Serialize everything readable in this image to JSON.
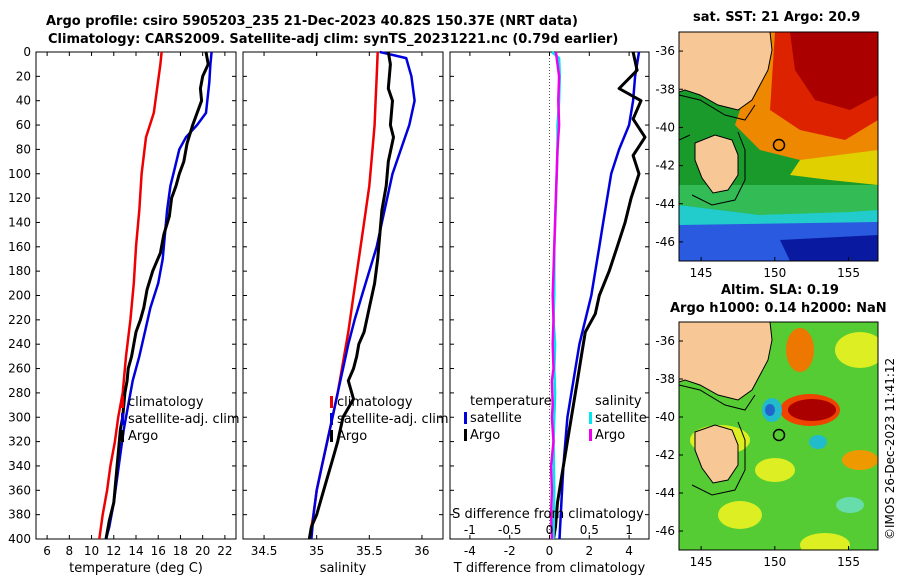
{
  "header": {
    "title_line1": "Argo profile: csiro 5905203_235 21-Dec-2023 40.82S 150.37E (NRT data)",
    "title_line2": "Climatology: CARS2009. Satellite-adj clim: synTS_20231221.nc (0.79d earlier)"
  },
  "colors": {
    "climatology": "#ee0000",
    "satellite": "#0000dd",
    "argo": "#000000",
    "salinity_satellite": "#00e5ee",
    "salinity_argo": "#ee00ee",
    "land": "#f7c896"
  },
  "chart_data": [
    {
      "type": "line",
      "name": "temperature-profile",
      "xlabel": "temperature (deg C)",
      "ylabel": "",
      "xlim": [
        5,
        23
      ],
      "ylim": [
        400,
        0
      ],
      "xticks": [
        6,
        8,
        10,
        12,
        14,
        16,
        18,
        20,
        22
      ],
      "yticks": [
        0,
        20,
        40,
        60,
        80,
        100,
        120,
        140,
        160,
        180,
        200,
        220,
        240,
        260,
        280,
        300,
        320,
        340,
        360,
        380,
        400
      ],
      "legend": [
        "climatology",
        "satellite-adj. clim",
        "Argo"
      ],
      "series": [
        {
          "name": "climatology",
          "color": "#ee0000",
          "width": 2.5,
          "x": [
            16.3,
            16.2,
            15.9,
            15.6,
            14.9,
            14.5,
            14.3,
            14.0,
            13.8,
            13.5,
            13.1,
            12.8,
            12.4,
            12.1,
            11.7,
            11.4,
            11.0,
            10.7
          ],
          "y": [
            0,
            10,
            30,
            50,
            70,
            100,
            130,
            160,
            190,
            220,
            250,
            280,
            300,
            320,
            340,
            360,
            380,
            400
          ]
        },
        {
          "name": "satellite-adj. clim",
          "color": "#0000dd",
          "width": 2.5,
          "x": [
            20.8,
            20.7,
            20.6,
            20.3,
            19.5,
            18.5,
            17.9,
            17.5,
            17.1,
            16.8,
            16.6,
            16.4,
            16.0,
            15.3,
            14.8,
            14.3,
            13.7,
            13.3,
            12.9,
            12.6,
            12.3,
            12.0,
            11.6,
            11.3
          ],
          "y": [
            0,
            10,
            25,
            50,
            60,
            70,
            80,
            95,
            110,
            130,
            150,
            170,
            190,
            210,
            230,
            250,
            270,
            290,
            310,
            330,
            350,
            370,
            390,
            400
          ]
        },
        {
          "name": "Argo",
          "color": "#000000",
          "width": 3,
          "x": [
            20.3,
            20.5,
            20.0,
            19.8,
            19.9,
            19.1,
            18.6,
            18.3,
            17.9,
            17.6,
            17.2,
            17.0,
            16.5,
            16.2,
            15.5,
            15.0,
            14.7,
            14.4,
            14.0,
            13.8,
            13.6,
            13.3,
            13.2,
            13.0,
            12.9,
            12.8,
            12.6,
            12.5,
            12.3,
            12.1,
            12.0,
            11.6,
            11.3
          ],
          "y": [
            0,
            10,
            20,
            30,
            40,
            60,
            75,
            90,
            100,
            110,
            120,
            135,
            150,
            165,
            180,
            195,
            210,
            220,
            230,
            240,
            250,
            260,
            270,
            280,
            290,
            300,
            310,
            320,
            340,
            360,
            370,
            385,
            400
          ]
        }
      ]
    },
    {
      "type": "line",
      "name": "salinity-profile",
      "xlabel": "salinity",
      "xlim": [
        34.3,
        36.2
      ],
      "ylim": [
        400,
        0
      ],
      "xticks": [
        34.5,
        35,
        35.5,
        36
      ],
      "xtick_labels": [
        "34.5",
        "35",
        "35.5",
        "36"
      ],
      "legend": [
        "climatology",
        "satellite-adj. clim",
        "Argo"
      ],
      "series": [
        {
          "name": "climatology",
          "color": "#ee0000",
          "width": 2.5,
          "x": [
            35.58,
            35.57,
            35.56,
            35.55,
            35.53,
            35.5,
            35.45,
            35.4,
            35.35,
            35.3,
            35.25,
            35.2,
            35.15,
            35.1,
            35.05,
            35.0,
            34.97,
            34.93
          ],
          "y": [
            0,
            20,
            40,
            60,
            80,
            110,
            140,
            170,
            200,
            230,
            255,
            280,
            300,
            320,
            340,
            360,
            380,
            400
          ]
        },
        {
          "name": "satellite-adj. clim",
          "color": "#0000dd",
          "width": 2.5,
          "x": [
            35.6,
            35.85,
            35.9,
            35.93,
            35.88,
            35.8,
            35.72,
            35.67,
            35.62,
            35.57,
            35.5,
            35.43,
            35.36,
            35.3,
            35.25,
            35.2,
            35.15,
            35.1,
            35.05,
            35.0,
            34.97,
            34.95
          ],
          "y": [
            0,
            5,
            20,
            40,
            60,
            80,
            100,
            120,
            140,
            160,
            180,
            200,
            220,
            240,
            260,
            280,
            300,
            320,
            340,
            360,
            380,
            400
          ]
        },
        {
          "name": "Argo",
          "color": "#000000",
          "width": 3,
          "x": [
            35.68,
            35.7,
            35.68,
            35.72,
            35.7,
            35.73,
            35.68,
            35.66,
            35.62,
            35.6,
            35.58,
            35.55,
            35.5,
            35.45,
            35.4,
            35.38,
            35.35,
            35.3,
            35.35,
            35.25,
            35.2,
            35.15,
            35.1,
            35.05,
            35.0,
            34.95,
            34.93
          ],
          "y": [
            0,
            10,
            30,
            40,
            60,
            70,
            90,
            110,
            130,
            150,
            170,
            190,
            210,
            230,
            240,
            250,
            260,
            270,
            285,
            300,
            320,
            335,
            350,
            365,
            380,
            390,
            400
          ]
        }
      ]
    },
    {
      "type": "line",
      "name": "difference-profile",
      "xlabel": "T difference from climatology",
      "top_xlabel": "S difference from climatology",
      "xlim": [
        -5,
        5
      ],
      "ylim": [
        400,
        0
      ],
      "xticks": [
        -4,
        -2,
        0,
        2,
        4
      ],
      "xtick_labels": [
        "-4",
        "-2",
        "0",
        "2",
        "4"
      ],
      "top_xticks": [
        -1,
        -0.5,
        0,
        0.5,
        1
      ],
      "top_xtick_labels": [
        "-1",
        "-0.5",
        "0",
        "0.5",
        "1"
      ],
      "legend_temperature_title": "temperature",
      "legend_salinity_title": "salinity",
      "legend_temperature": [
        "satellite",
        "Argo"
      ],
      "legend_salinity": [
        "satellite",
        "Argo"
      ],
      "series": [
        {
          "name": "T satellite",
          "color": "#0000dd",
          "width": 2.5,
          "x": [
            4.5,
            4.3,
            4.2,
            4.0,
            3.5,
            3.1,
            2.9,
            2.7,
            2.5,
            2.3,
            2.1,
            1.8,
            1.5,
            1.3,
            1.1,
            0.9,
            0.8,
            0.7,
            0.6,
            0.5
          ],
          "y": [
            0,
            20,
            40,
            60,
            80,
            100,
            120,
            140,
            160,
            180,
            200,
            220,
            240,
            260,
            280,
            300,
            320,
            340,
            370,
            400
          ]
        },
        {
          "name": "T Argo",
          "color": "#000000",
          "width": 3,
          "x": [
            4.2,
            4.4,
            3.5,
            4.6,
            4.2,
            4.8,
            4.2,
            4.5,
            4.1,
            3.8,
            3.4,
            3.0,
            2.5,
            2.3,
            1.8,
            1.6,
            1.4,
            1.2,
            1.0,
            0.8,
            0.6,
            0.4,
            0.3,
            0.2
          ],
          "y": [
            0,
            15,
            30,
            40,
            55,
            70,
            85,
            100,
            120,
            140,
            160,
            180,
            200,
            215,
            230,
            250,
            270,
            290,
            310,
            330,
            350,
            370,
            390,
            400
          ]
        },
        {
          "name": "S satellite",
          "color": "#00e5ee",
          "width": 2.5,
          "x": [
            0.03,
            0.12,
            0.13,
            0.12,
            0.1,
            0.1,
            0.09,
            0.08,
            0.07,
            0.06,
            0.06,
            0.06,
            0.05,
            0.07,
            0.06,
            0.07,
            0.06,
            0.05,
            0.06,
            0.05
          ],
          "y": [
            0,
            5,
            20,
            40,
            60,
            80,
            100,
            120,
            140,
            160,
            180,
            200,
            220,
            240,
            260,
            280,
            300,
            320,
            360,
            400
          ]
        },
        {
          "name": "S Argo",
          "color": "#ee00ee",
          "width": 2.5,
          "x": [
            0.08,
            0.12,
            0.11,
            0.12,
            0.1,
            0.09,
            0.08,
            0.07,
            0.06,
            0.05,
            0.04,
            0.05,
            0.04,
            0.05,
            0.03,
            0.04,
            0.03,
            0.05,
            0.02,
            0.03,
            0.02,
            0.03
          ],
          "y": [
            0,
            20,
            40,
            60,
            80,
            100,
            120,
            140,
            160,
            180,
            200,
            220,
            240,
            260,
            270,
            290,
            300,
            320,
            340,
            360,
            380,
            400
          ]
        }
      ]
    },
    {
      "type": "heatmap",
      "name": "sst-map",
      "title": "sat. SST: 21 Argo: 20.9",
      "xlim": [
        143.5,
        157
      ],
      "ylim": [
        -47,
        -35
      ],
      "xticks": [
        145,
        150,
        155
      ],
      "yticks": [
        -36,
        -38,
        -40,
        -42,
        -44,
        -46
      ],
      "argo_position": [
        150.37,
        -40.82
      ]
    },
    {
      "type": "heatmap",
      "name": "sla-map",
      "title_line1": "Altim. SLA: 0.19",
      "title_line2": "Argo h1000: 0.14 h2000: NaN",
      "xlim": [
        143.5,
        157
      ],
      "ylim": [
        -47,
        -35
      ],
      "xticks": [
        145,
        150,
        155
      ],
      "yticks": [
        -36,
        -38,
        -40,
        -42,
        -44,
        -46
      ],
      "argo_position": [
        150.37,
        -40.82
      ]
    }
  ],
  "footer": {
    "credit": "©IMOS 26-Dec-2023 11:41:12"
  }
}
